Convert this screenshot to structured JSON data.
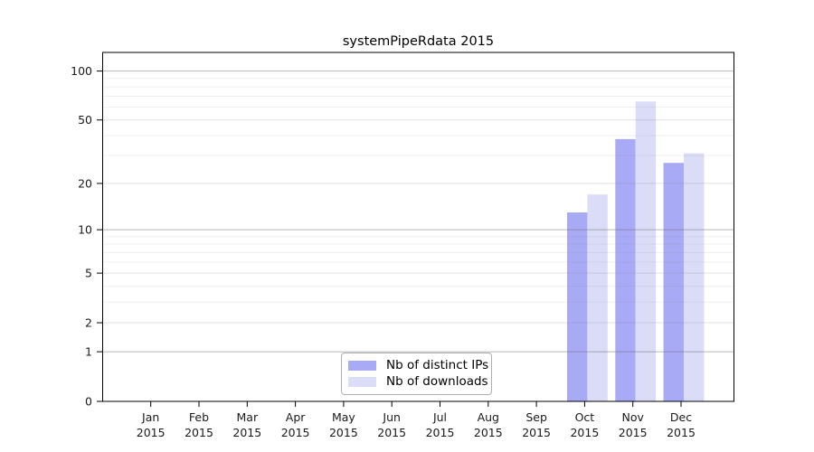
{
  "chart_data": {
    "type": "bar",
    "title": "systemPipeRdata 2015",
    "categories": [
      "Jan",
      "Feb",
      "Mar",
      "Apr",
      "May",
      "Jun",
      "Jul",
      "Aug",
      "Sep",
      "Oct",
      "Nov",
      "Dec"
    ],
    "category_year": "2015",
    "series": [
      {
        "name": "Nb of distinct IPs",
        "color": "#a9aaf6",
        "values": [
          0,
          0,
          0,
          0,
          0,
          0,
          0,
          0,
          0,
          13,
          38,
          27
        ]
      },
      {
        "name": "Nb of downloads",
        "color": "#dbdcf8",
        "values": [
          0,
          0,
          0,
          0,
          0,
          0,
          0,
          0,
          0,
          17,
          65,
          31
        ]
      }
    ],
    "yscale": "log1p",
    "ylim": [
      0,
      130
    ],
    "yticks": [
      0,
      1,
      2,
      5,
      10,
      20,
      50,
      100
    ],
    "power_of_ten_ticks": [
      1,
      10,
      100
    ],
    "minor_gridlines": [
      3,
      4,
      6,
      7,
      8,
      9,
      30,
      40,
      60,
      70,
      80,
      90
    ],
    "grid": "horizontal",
    "legend_position": "inside-bottom-center",
    "axis_color": "#000000",
    "text_color": "#1a1a1a",
    "plot_background": "#ffffff"
  }
}
